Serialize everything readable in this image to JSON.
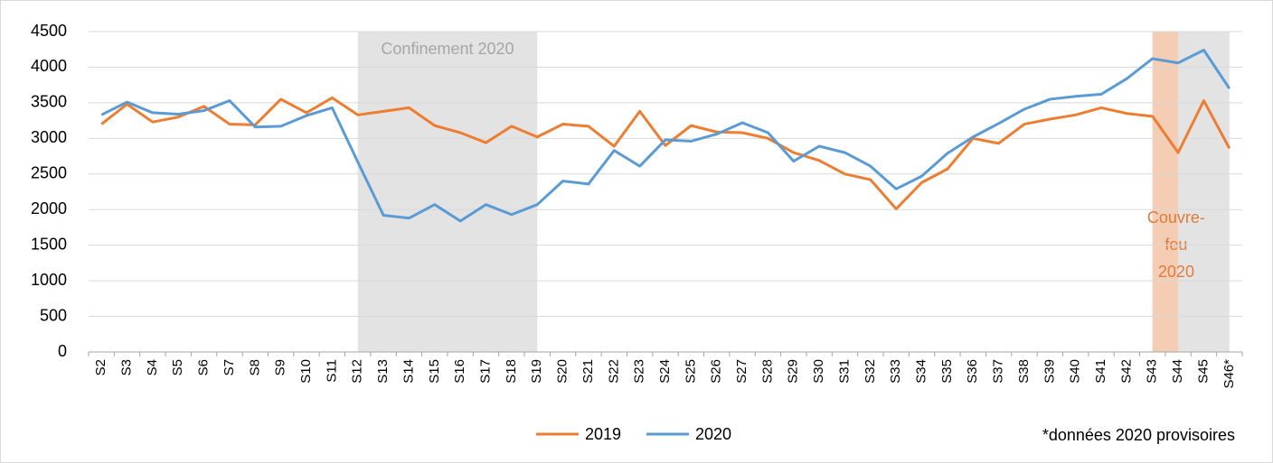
{
  "chart_data": {
    "type": "line",
    "categories": [
      "S2",
      "S3",
      "S4",
      "S5",
      "S6",
      "S7",
      "S8",
      "S9",
      "S10",
      "S11",
      "S12",
      "S13",
      "S14",
      "S15",
      "S16",
      "S17",
      "S18",
      "S19",
      "S20",
      "S21",
      "S22",
      "S23",
      "S24",
      "S25",
      "S26",
      "S27",
      "S28",
      "S29",
      "S30",
      "S31",
      "S32",
      "S33",
      "S34",
      "S35",
      "S36",
      "S37",
      "S38",
      "S39",
      "S40",
      "S41",
      "S42",
      "S43",
      "S44",
      "S45",
      "S46*"
    ],
    "series": [
      {
        "name": "2019",
        "color": "#ed7d31",
        "values": [
          3200,
          3480,
          3230,
          3300,
          3450,
          3200,
          3190,
          3550,
          3360,
          3570,
          3330,
          3380,
          3430,
          3180,
          3080,
          2940,
          3170,
          3020,
          3200,
          3170,
          2890,
          3380,
          2900,
          3180,
          3090,
          3080,
          3000,
          2800,
          2690,
          2500,
          2420,
          2010,
          2380,
          2570,
          3000,
          2930,
          3200,
          3270,
          3330,
          3430,
          3350,
          3310,
          2800,
          3530,
          2860
        ]
      },
      {
        "name": "2020",
        "color": "#5b9bd5",
        "values": [
          3330,
          3510,
          3360,
          3340,
          3390,
          3530,
          3160,
          3170,
          3320,
          3430,
          2670,
          1920,
          1880,
          2070,
          1840,
          2070,
          1930,
          2070,
          2400,
          2360,
          2830,
          2610,
          2980,
          2960,
          3060,
          3220,
          3080,
          2680,
          2890,
          2800,
          2610,
          2290,
          2470,
          2790,
          3020,
          3210,
          3410,
          3550,
          3590,
          3620,
          3840,
          4120,
          4060,
          4240,
          3700
        ]
      }
    ],
    "ylim": [
      0,
      4500
    ],
    "yticks": [
      0,
      500,
      1000,
      1500,
      2000,
      2500,
      3000,
      3500,
      4000,
      4500
    ],
    "grid": true,
    "shaded_regions": [
      {
        "start": 10,
        "end": 17,
        "color": "#e3e3e3",
        "label": [
          "Confinement 2020"
        ],
        "label_color": "#a6a6a6"
      },
      {
        "start": 41,
        "end": 44,
        "color": "#e3e3e3"
      },
      {
        "start": 41,
        "end": 42,
        "color": "#f5cdb4",
        "label": [
          "Couvre-",
          "feu",
          "2020"
        ],
        "label_color": "#e07b39"
      }
    ],
    "footnote": "*données 2020 provisoires"
  }
}
